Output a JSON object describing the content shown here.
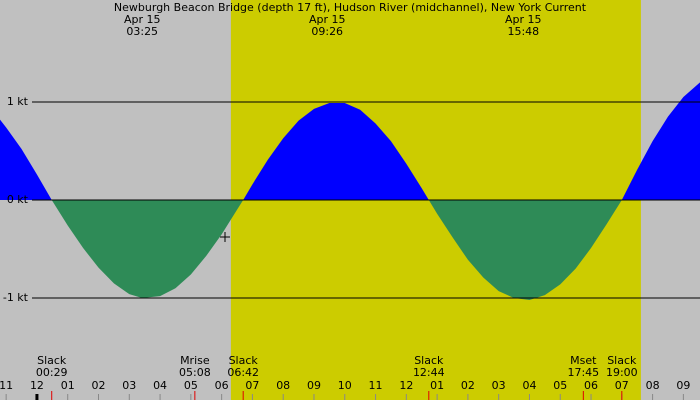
{
  "chart_data": {
    "type": "area",
    "title": "Newburgh Beacon Bridge (depth 17 ft), Hudson River (midchannel), New York Current",
    "x": [
      -1.2,
      -1,
      -0.5,
      0,
      0.48,
      1,
      1.5,
      2,
      2.5,
      3,
      3.42,
      4,
      4.5,
      5,
      5.5,
      6,
      6.5,
      6.7,
      7,
      7.5,
      8,
      8.5,
      9,
      9.5,
      10,
      10.5,
      11,
      11.5,
      12,
      12.5,
      12.73,
      13,
      13.5,
      14,
      14.5,
      15,
      15.5,
      16,
      16.5,
      17,
      17.5,
      18,
      18.5,
      19,
      19.5,
      20,
      20.5,
      21,
      21.54
    ],
    "values": [
      0.82,
      0.74,
      0.52,
      0.26,
      0,
      -0.26,
      -0.49,
      -0.69,
      -0.85,
      -0.96,
      -1.0,
      -0.98,
      -0.9,
      -0.76,
      -0.57,
      -0.35,
      -0.1,
      0,
      0.16,
      0.41,
      0.63,
      0.81,
      0.93,
      0.99,
      0.99,
      0.92,
      0.78,
      0.6,
      0.37,
      0.12,
      0,
      -0.14,
      -0.38,
      -0.61,
      -0.79,
      -0.93,
      -1.0,
      -1.02,
      -0.97,
      -0.86,
      -0.7,
      -0.49,
      -0.25,
      0,
      0.31,
      0.6,
      0.85,
      1.05,
      1.2
    ],
    "flood_color": "#0000ff",
    "ebb_color": "#2e8b57",
    "background": "#c0c0c0",
    "daylight_color": "#cccc00",
    "daylight": [
      6.3,
      19.62
    ],
    "xlim": [
      -1.2,
      21.54
    ],
    "ylim": [
      -2.04,
      2.04
    ],
    "yticks": [
      {
        "value": 1,
        "label": "1 kt"
      },
      {
        "value": 0,
        "label": "0 kt"
      },
      {
        "value": -1,
        "label": "-1 kt"
      }
    ],
    "xticks": [
      {
        "value": -1,
        "label": "11"
      },
      {
        "value": 0,
        "label": "12"
      },
      {
        "value": 1,
        "label": "01"
      },
      {
        "value": 2,
        "label": "02"
      },
      {
        "value": 3,
        "label": "03"
      },
      {
        "value": 4,
        "label": "04"
      },
      {
        "value": 5,
        "label": "05"
      },
      {
        "value": 6,
        "label": "06"
      },
      {
        "value": 7,
        "label": "07"
      },
      {
        "value": 8,
        "label": "08"
      },
      {
        "value": 9,
        "label": "09"
      },
      {
        "value": 10,
        "label": "10"
      },
      {
        "value": 11,
        "label": "11"
      },
      {
        "value": 12,
        "label": "12"
      },
      {
        "value": 13,
        "label": "01"
      },
      {
        "value": 14,
        "label": "02"
      },
      {
        "value": 15,
        "label": "03"
      },
      {
        "value": 16,
        "label": "04"
      },
      {
        "value": 17,
        "label": "05"
      },
      {
        "value": 18,
        "label": "06"
      },
      {
        "value": 19,
        "label": "07"
      },
      {
        "value": 20,
        "label": "08"
      },
      {
        "value": 21,
        "label": "09"
      }
    ],
    "peaks": [
      {
        "date": "Apr 15",
        "time": "03:25",
        "x": 3.42
      },
      {
        "date": "Apr 15",
        "time": "09:26",
        "x": 9.43
      },
      {
        "date": "Apr 15",
        "time": "15:48",
        "x": 15.8
      }
    ],
    "events": [
      {
        "label": "Slack",
        "time": "00:29",
        "x": 0.48
      },
      {
        "label": "Mrise",
        "time": "05:08",
        "x": 5.13
      },
      {
        "label": "Slack",
        "time": "06:42",
        "x": 6.7
      },
      {
        "label": "Slack",
        "time": "12:44",
        "x": 12.73
      },
      {
        "label": "Mset",
        "time": "17:45",
        "x": 17.75
      },
      {
        "label": "Slack",
        "time": "19:00",
        "x": 19.0
      }
    ]
  }
}
